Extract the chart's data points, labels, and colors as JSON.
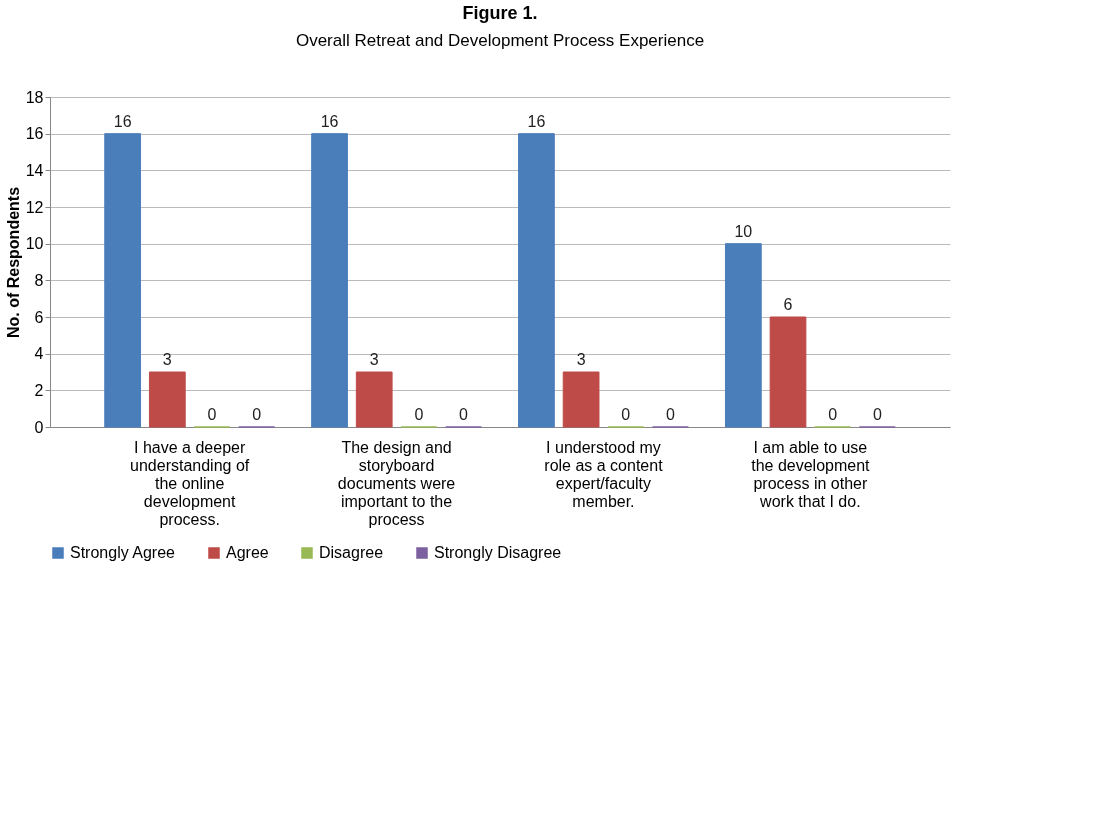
{
  "chart_data": {
    "type": "bar",
    "title": "Figure 1.",
    "subtitle": "Overall Retreat and Development Process Experience",
    "ylabel": "No. of Respondents",
    "categories": [
      "I have a deeper understanding of the online development process.",
      "The design and storyboard documents were important to the process",
      "I understood my role as a content expert/faculty member.",
      "I am able to use the development process in other work that I do."
    ],
    "series": [
      {
        "name": "Strongly Agree",
        "color": "#4a7ebb",
        "values": [
          16,
          16,
          16,
          10
        ]
      },
      {
        "name": "Agree",
        "color": "#be4b48",
        "values": [
          3,
          3,
          3,
          6
        ]
      },
      {
        "name": "Disagree",
        "color": "#98b954",
        "values": [
          0,
          0,
          0,
          0
        ]
      },
      {
        "name": "Strongly Disagree",
        "color": "#7d60a0",
        "values": [
          0,
          0,
          0,
          0
        ]
      }
    ],
    "ylim": [
      0,
      18
    ],
    "yticks": [
      0,
      2,
      4,
      6,
      8,
      10,
      12,
      14,
      16,
      18
    ],
    "grid": "y",
    "legend": "bottom",
    "data_labels": true
  }
}
